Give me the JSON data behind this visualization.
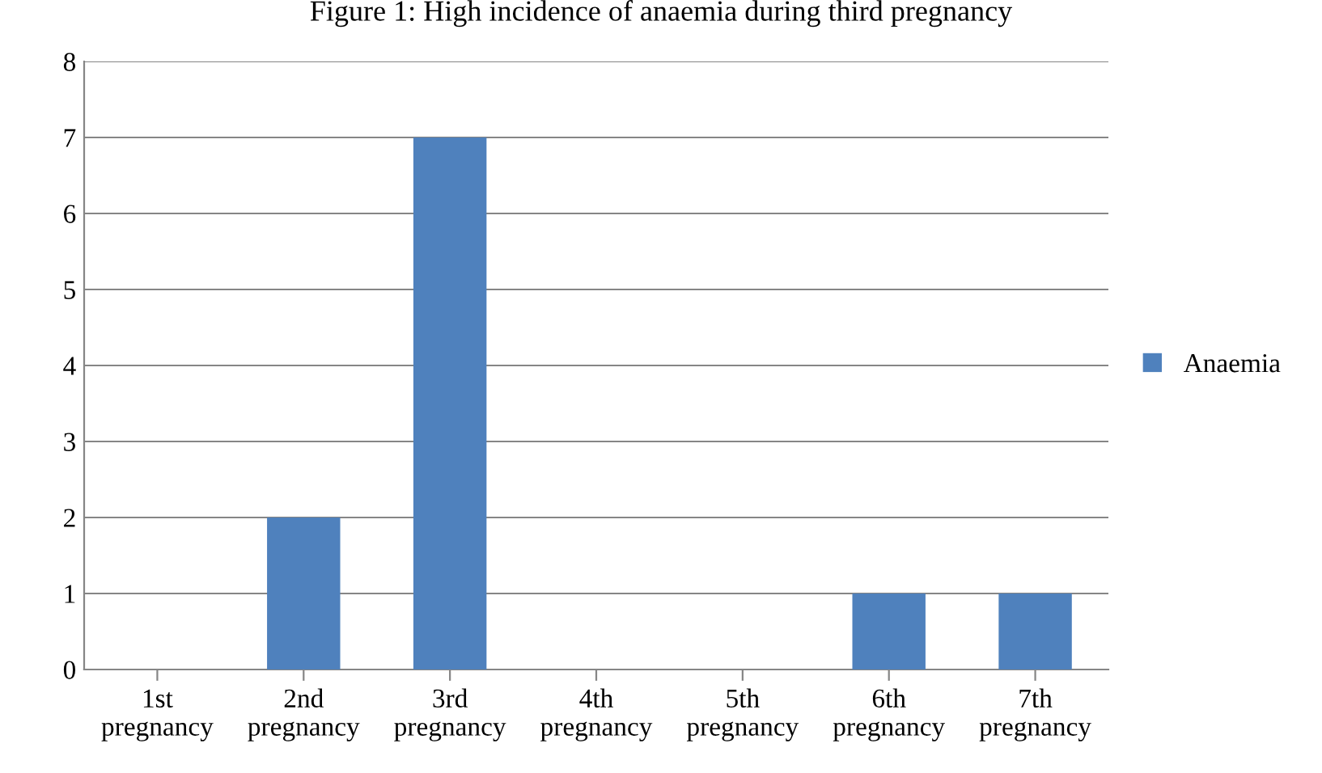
{
  "chart_data": {
    "type": "bar",
    "title": "Figure 1: High incidence of anaemia during third pregnancy",
    "categories": [
      "1st\npregnancy",
      "2nd\npregnancy",
      "3rd\npregnancy",
      "4th\npregnancy",
      "5th\npregnancy",
      "6th\npregnancy",
      "7th\npregnancy"
    ],
    "series": [
      {
        "name": "Anaemia",
        "color": "#4f81bd",
        "values": [
          0,
          2,
          7,
          0,
          0,
          1,
          1
        ]
      }
    ],
    "ylim": [
      0,
      8
    ],
    "yticks": [
      0,
      1,
      2,
      3,
      4,
      5,
      6,
      7,
      8
    ],
    "grid": "y",
    "legend": "right"
  }
}
